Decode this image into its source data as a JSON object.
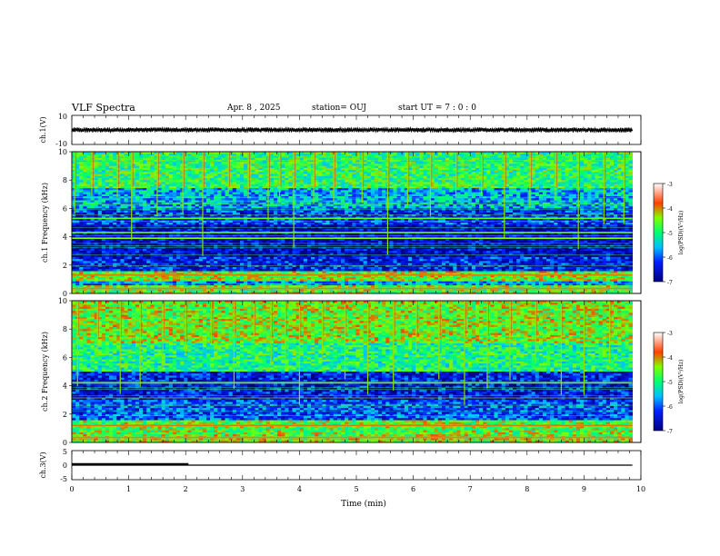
{
  "header": {
    "title": "VLF Spectra",
    "date": "Apr. 8 , 2025",
    "station": "station= OUJ",
    "start_ut": "start UT = 7 : 0 : 0"
  },
  "chart_data": [
    {
      "type": "line",
      "name": "ch1-waveform",
      "ylabel": "ch.1(V)",
      "ylim": [
        -10,
        10
      ],
      "yticks": [
        "10",
        "-10"
      ],
      "x_range": [
        0,
        9.85
      ],
      "level": 0,
      "amplitude_v": 1.2
    },
    {
      "type": "heatmap",
      "name": "ch1-spectrogram",
      "ylabel": "ch.1 Frequency (kHz)",
      "ylim": [
        0,
        10
      ],
      "yticks": [
        "0",
        "2",
        "4",
        "6",
        "8",
        "10"
      ],
      "x_range": [
        0,
        9.85
      ],
      "colorbar": {
        "label": "log(PSD)(V²/Hz)",
        "range": [
          -7,
          -3
        ],
        "ticks": [
          "-3",
          "-4",
          "-5",
          "-6",
          "-7"
        ]
      },
      "bands": [
        {
          "f": [
            0,
            0.6
          ],
          "v": -4.6
        },
        {
          "f": [
            0.6,
            0.9
          ],
          "v": -5.8
        },
        {
          "f": [
            0.9,
            1.6
          ],
          "v": -4.5
        },
        {
          "f": [
            1.6,
            2.6
          ],
          "v": -6.3
        },
        {
          "f": [
            2.6,
            4.8
          ],
          "v": -6.6
        },
        {
          "f": [
            4.8,
            6.0
          ],
          "v": -6.2
        },
        {
          "f": [
            6.0,
            7.5
          ],
          "v": -5.6
        },
        {
          "f": [
            7.5,
            10.0
          ],
          "v": -4.9
        }
      ],
      "tones": [
        {
          "f": 0.35,
          "v": -3.6
        },
        {
          "f": 1.3,
          "v": -4.0
        },
        {
          "f": 3.9,
          "v": -4.4
        },
        {
          "f": 4.3,
          "v": -4.6
        },
        {
          "f": 5.3,
          "v": -4.6
        }
      ],
      "broadband_events_min": [
        0.05,
        0.35,
        0.8,
        1.05,
        1.5,
        1.95,
        2.3,
        2.75,
        3.1,
        3.45,
        3.65,
        3.9,
        4.25,
        4.6,
        5.1,
        5.55,
        5.9,
        6.3,
        6.75,
        7.2,
        7.6,
        8.05,
        8.5,
        8.9,
        9.35,
        9.7
      ]
    },
    {
      "type": "heatmap",
      "name": "ch2-spectrogram",
      "ylabel": "ch.2 Frequency (kHz)",
      "ylim": [
        0,
        10
      ],
      "yticks": [
        "0",
        "2",
        "4",
        "6",
        "8",
        "10"
      ],
      "x_range": [
        0,
        9.85
      ],
      "colorbar": {
        "label": "log(PSD)(V²/Hz)",
        "range": [
          -7,
          -3
        ],
        "ticks": [
          "-3",
          "-4",
          "-5",
          "-6",
          "-7"
        ]
      },
      "bands": [
        {
          "f": [
            0,
            0.6
          ],
          "v": -4.5
        },
        {
          "f": [
            0.6,
            1.6
          ],
          "v": -4.6
        },
        {
          "f": [
            1.6,
            3.0
          ],
          "v": -6.1
        },
        {
          "f": [
            3.0,
            5.0
          ],
          "v": -6.4
        },
        {
          "f": [
            5.0,
            7.0
          ],
          "v": -5.0
        },
        {
          "f": [
            7.0,
            10.0
          ],
          "v": -4.5
        }
      ],
      "tones": [
        {
          "f": 0.35,
          "v": -3.6
        },
        {
          "f": 1.2,
          "v": -4.0
        },
        {
          "f": 4.2,
          "v": -4.3
        }
      ],
      "broadband_events_min": [
        0.1,
        0.45,
        0.85,
        1.2,
        1.6,
        2.0,
        2.45,
        2.85,
        3.2,
        3.5,
        3.75,
        4.0,
        4.4,
        4.8,
        5.2,
        5.65,
        6.05,
        6.45,
        6.9,
        7.3,
        7.7,
        8.15,
        8.6,
        9.0,
        9.45
      ]
    },
    {
      "type": "line",
      "name": "ch3-level",
      "ylabel": "ch.3(V)",
      "ylim": [
        -5,
        5
      ],
      "yticks": [
        "5",
        "0",
        "-5"
      ],
      "xlabel": "Time (min)",
      "xlim": [
        0,
        10
      ],
      "xticks": [
        "0",
        "1",
        "2",
        "3",
        "4",
        "5",
        "6",
        "7",
        "8",
        "9",
        "10"
      ],
      "x_range": [
        0,
        9.85
      ],
      "level": 0,
      "thick_segment_min": [
        0,
        2.05
      ]
    }
  ]
}
